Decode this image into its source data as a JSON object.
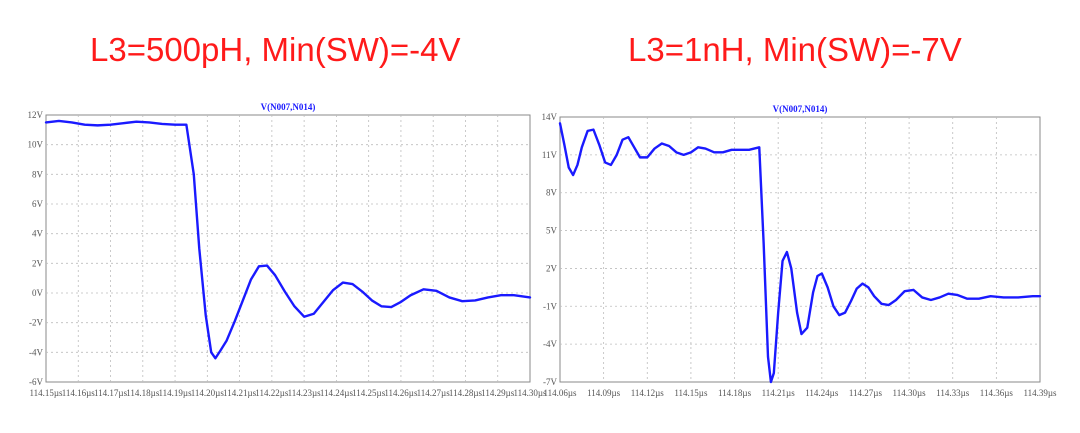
{
  "colors": {
    "title": "#ff1a1a",
    "trace": "#1a1aff",
    "grid": "#bdbdbd",
    "frame": "#8a8a8a",
    "tick_text": "#555555"
  },
  "chart_data": [
    {
      "type": "line",
      "title": "L3=500pH,   Min(SW)=-4V",
      "trace_label": "V(N007,N014)",
      "xlabel": "",
      "ylabel": "",
      "x_unit": "µs",
      "xlim": [
        114.15,
        114.3
      ],
      "ylim": [
        -6,
        12
      ],
      "x_ticks": [
        "114.15µs",
        "114.16µs",
        "114.17µs",
        "114.18µs",
        "114.19µs",
        "114.20µs",
        "114.21µs",
        "114.22µs",
        "114.23µs",
        "114.24µs",
        "114.25µs",
        "114.26µs",
        "114.27µs",
        "114.28µs",
        "114.29µs",
        "114.30µs"
      ],
      "x_tick_values": [
        114.15,
        114.16,
        114.17,
        114.18,
        114.19,
        114.2,
        114.21,
        114.22,
        114.23,
        114.24,
        114.25,
        114.26,
        114.27,
        114.28,
        114.29,
        114.3
      ],
      "y_ticks": [
        "-6V",
        "-4V",
        "-2V",
        "0V",
        "2V",
        "4V",
        "6V",
        "8V",
        "10V",
        "12V"
      ],
      "y_tick_values": [
        -6,
        -4,
        -2,
        0,
        2,
        4,
        6,
        8,
        10,
        12
      ],
      "grid": true,
      "series": [
        {
          "x": [
            114.15,
            114.154,
            114.158,
            114.162,
            114.166,
            114.17,
            114.174,
            114.178,
            114.182,
            114.186,
            114.19,
            114.1935,
            114.1958,
            114.1975,
            114.1995,
            114.2012,
            114.2025,
            114.204,
            114.206,
            114.2085,
            114.211,
            114.2135,
            114.216,
            114.2185,
            114.221,
            114.224,
            114.227,
            114.23,
            114.233,
            114.236,
            114.239,
            114.242,
            114.245,
            114.248,
            114.251,
            114.254,
            114.257,
            114.26,
            114.263,
            114.267,
            114.271,
            114.275,
            114.279,
            114.283,
            114.287,
            114.291,
            114.295,
            114.3
          ],
          "y": [
            11.5,
            11.6,
            11.5,
            11.35,
            11.3,
            11.35,
            11.45,
            11.55,
            11.5,
            11.4,
            11.35,
            11.35,
            8.0,
            3.0,
            -1.5,
            -4.0,
            -4.4,
            -3.9,
            -3.2,
            -1.9,
            -0.5,
            0.9,
            1.8,
            1.85,
            1.2,
            0.1,
            -0.9,
            -1.6,
            -1.4,
            -0.6,
            0.2,
            0.7,
            0.6,
            0.1,
            -0.5,
            -0.9,
            -0.95,
            -0.6,
            -0.15,
            0.25,
            0.15,
            -0.3,
            -0.55,
            -0.5,
            -0.3,
            -0.15,
            -0.15,
            -0.3
          ]
        }
      ]
    },
    {
      "type": "line",
      "title": "L3=1nH,   Min(SW)=-7V",
      "trace_label": "V(N007,N014)",
      "xlabel": "",
      "ylabel": "",
      "x_unit": "µs",
      "xlim": [
        114.06,
        114.39
      ],
      "ylim": [
        -7,
        14
      ],
      "x_ticks": [
        "114.06µs",
        "114.09µs",
        "114.12µs",
        "114.15µs",
        "114.18µs",
        "114.21µs",
        "114.24µs",
        "114.27µs",
        "114.30µs",
        "114.33µs",
        "114.36µs",
        "114.39µs"
      ],
      "x_tick_values": [
        114.06,
        114.09,
        114.12,
        114.15,
        114.18,
        114.21,
        114.24,
        114.27,
        114.3,
        114.33,
        114.36,
        114.39
      ],
      "y_ticks": [
        "-7V",
        "-4V",
        "-1V",
        "2V",
        "5V",
        "8V",
        "11V",
        "14V"
      ],
      "y_tick_values": [
        -7,
        -4,
        -1,
        2,
        5,
        8,
        11,
        14
      ],
      "grid": true,
      "series": [
        {
          "x": [
            114.06,
            114.063,
            114.066,
            114.069,
            114.072,
            114.075,
            114.079,
            114.083,
            114.087,
            114.091,
            114.095,
            114.099,
            114.103,
            114.107,
            114.111,
            114.115,
            114.12,
            114.125,
            114.13,
            114.135,
            114.14,
            114.145,
            114.15,
            114.155,
            114.16,
            114.166,
            114.172,
            114.178,
            114.184,
            114.19,
            114.197,
            114.2,
            114.203,
            114.205,
            114.207,
            114.21,
            114.213,
            114.216,
            114.219,
            114.223,
            114.226,
            114.23,
            114.234,
            114.237,
            114.24,
            114.244,
            114.248,
            114.252,
            114.256,
            114.26,
            114.264,
            114.268,
            114.272,
            114.276,
            114.281,
            114.286,
            114.291,
            114.297,
            114.303,
            114.309,
            114.315,
            114.321,
            114.327,
            114.333,
            114.34,
            114.348,
            114.356,
            114.365,
            114.375,
            114.385,
            114.39
          ],
          "y": [
            13.5,
            11.8,
            10.0,
            9.4,
            10.2,
            11.6,
            12.9,
            13.0,
            11.8,
            10.4,
            10.2,
            11.0,
            12.2,
            12.4,
            11.6,
            10.8,
            10.8,
            11.5,
            11.9,
            11.7,
            11.2,
            11.0,
            11.2,
            11.6,
            11.5,
            11.2,
            11.2,
            11.4,
            11.4,
            11.4,
            11.6,
            4.0,
            -5.0,
            -7.0,
            -6.3,
            -1.5,
            2.6,
            3.3,
            2.0,
            -1.5,
            -3.2,
            -2.7,
            0.1,
            1.4,
            1.6,
            0.5,
            -1.0,
            -1.7,
            -1.5,
            -0.6,
            0.4,
            0.8,
            0.5,
            -0.2,
            -0.8,
            -0.9,
            -0.5,
            0.2,
            0.3,
            -0.3,
            -0.5,
            -0.3,
            0.0,
            -0.1,
            -0.4,
            -0.4,
            -0.2,
            -0.3,
            -0.3,
            -0.2,
            -0.2
          ]
        }
      ]
    }
  ]
}
